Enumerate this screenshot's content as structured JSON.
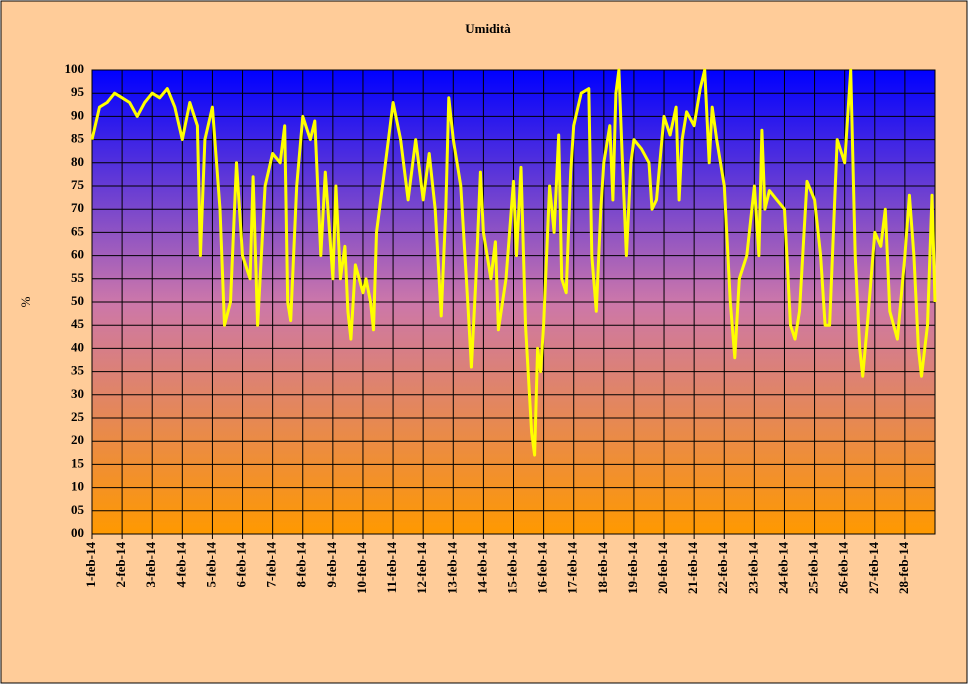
{
  "chart_data": {
    "type": "line",
    "title": "Umidità",
    "ylabel": "%",
    "x": [
      1.0,
      1.25,
      1.5,
      1.75,
      2.0,
      2.25,
      2.5,
      2.75,
      3.0,
      3.25,
      3.5,
      3.75,
      4.0,
      4.25,
      4.5,
      4.6,
      4.75,
      5.0,
      5.25,
      5.4,
      5.6,
      5.8,
      6.0,
      6.25,
      6.35,
      6.5,
      6.75,
      7.0,
      7.25,
      7.4,
      7.5,
      7.6,
      7.8,
      8.0,
      8.25,
      8.4,
      8.6,
      8.75,
      9.0,
      9.1,
      9.25,
      9.4,
      9.5,
      9.6,
      9.75,
      10.0,
      10.1,
      10.25,
      10.35,
      10.45,
      10.75,
      11.0,
      11.25,
      11.5,
      11.75,
      12.0,
      12.2,
      12.4,
      12.6,
      12.75,
      12.85,
      13.0,
      13.25,
      13.5,
      13.6,
      13.75,
      13.9,
      14.0,
      14.25,
      14.4,
      14.5,
      14.75,
      15.0,
      15.1,
      15.25,
      15.4,
      15.6,
      15.7,
      15.8,
      15.9,
      16.0,
      16.2,
      16.35,
      16.5,
      16.6,
      16.75,
      16.9,
      17.0,
      17.25,
      17.5,
      17.6,
      17.75,
      17.9,
      18.0,
      18.2,
      18.3,
      18.4,
      18.5,
      18.6,
      18.75,
      18.9,
      19.0,
      19.25,
      19.5,
      19.6,
      19.75,
      20.0,
      20.2,
      20.4,
      20.5,
      20.6,
      20.75,
      21.0,
      21.2,
      21.35,
      21.5,
      21.6,
      21.75,
      22.0,
      22.2,
      22.35,
      22.5,
      22.75,
      23.0,
      23.15,
      23.25,
      23.35,
      23.5,
      23.75,
      24.0,
      24.2,
      24.35,
      24.5,
      24.75,
      25.0,
      25.2,
      25.35,
      25.5,
      25.75,
      26.0,
      26.2,
      26.35,
      26.5,
      26.6,
      26.75,
      27.0,
      27.2,
      27.35,
      27.5,
      27.75,
      28.0,
      28.15,
      28.3,
      28.45,
      28.55,
      28.75,
      28.9,
      29.0
    ],
    "series": [
      {
        "name": "Umidità",
        "color": "#ffff00",
        "values": [
          85,
          92,
          93,
          95,
          94,
          93,
          90,
          93,
          95,
          94,
          96,
          92,
          85,
          93,
          88,
          60,
          85,
          92,
          70,
          45,
          50,
          80,
          60,
          55,
          77,
          45,
          75,
          82,
          80,
          88,
          50,
          46,
          75,
          90,
          85,
          89,
          60,
          78,
          55,
          75,
          55,
          62,
          48,
          42,
          58,
          52,
          55,
          50,
          44,
          65,
          80,
          93,
          85,
          72,
          85,
          72,
          82,
          70,
          47,
          70,
          94,
          85,
          75,
          48,
          36,
          55,
          78,
          65,
          55,
          63,
          44,
          55,
          76,
          60,
          79,
          45,
          22,
          17,
          40,
          35,
          45,
          75,
          65,
          86,
          55,
          52,
          78,
          88,
          95,
          96,
          60,
          48,
          70,
          80,
          88,
          72,
          95,
          100,
          83,
          60,
          80,
          85,
          83,
          80,
          70,
          72,
          90,
          86,
          92,
          72,
          85,
          91,
          88,
          96,
          100,
          80,
          92,
          85,
          75,
          50,
          38,
          55,
          60,
          75,
          60,
          87,
          70,
          74,
          72,
          70,
          45,
          42,
          48,
          76,
          72,
          60,
          45,
          45,
          85,
          80,
          100,
          60,
          40,
          34,
          45,
          65,
          62,
          70,
          48,
          42,
          60,
          73,
          60,
          40,
          34,
          45,
          73,
          50
        ]
      }
    ],
    "xlim": [
      1,
      29
    ],
    "xticks": [
      {
        "value": 1,
        "label": "1-feb-14"
      },
      {
        "value": 2,
        "label": "2-feb-14"
      },
      {
        "value": 3,
        "label": "3-feb-14"
      },
      {
        "value": 4,
        "label": "4-feb-14"
      },
      {
        "value": 5,
        "label": "5-feb-14"
      },
      {
        "value": 6,
        "label": "6-feb-14"
      },
      {
        "value": 7,
        "label": "7-feb-14"
      },
      {
        "value": 8,
        "label": "8-feb-14"
      },
      {
        "value": 9,
        "label": "9-feb-14"
      },
      {
        "value": 10,
        "label": "10-feb-14"
      },
      {
        "value": 11,
        "label": "11-feb-14"
      },
      {
        "value": 12,
        "label": "12-feb-14"
      },
      {
        "value": 13,
        "label": "13-feb-14"
      },
      {
        "value": 14,
        "label": "14-feb-14"
      },
      {
        "value": 15,
        "label": "15-feb-14"
      },
      {
        "value": 16,
        "label": "16-feb-14"
      },
      {
        "value": 17,
        "label": "17-feb-14"
      },
      {
        "value": 18,
        "label": "18-feb-14"
      },
      {
        "value": 19,
        "label": "19-feb-14"
      },
      {
        "value": 20,
        "label": "20-feb-14"
      },
      {
        "value": 21,
        "label": "21-feb-14"
      },
      {
        "value": 22,
        "label": "22-feb-14"
      },
      {
        "value": 23,
        "label": "23-feb-14"
      },
      {
        "value": 24,
        "label": "24-feb-14"
      },
      {
        "value": 25,
        "label": "25-feb-14"
      },
      {
        "value": 26,
        "label": "26-feb-14"
      },
      {
        "value": 27,
        "label": "27-feb-14"
      },
      {
        "value": 28,
        "label": "28-feb-14"
      }
    ],
    "ylim": [
      0,
      100
    ],
    "yticks": [
      {
        "value": 0,
        "label": "00"
      },
      {
        "value": 5,
        "label": "05"
      },
      10,
      15,
      20,
      25,
      30,
      35,
      40,
      45,
      50,
      55,
      60,
      65,
      70,
      75,
      80,
      85,
      90,
      95,
      100
    ],
    "grid": true
  }
}
